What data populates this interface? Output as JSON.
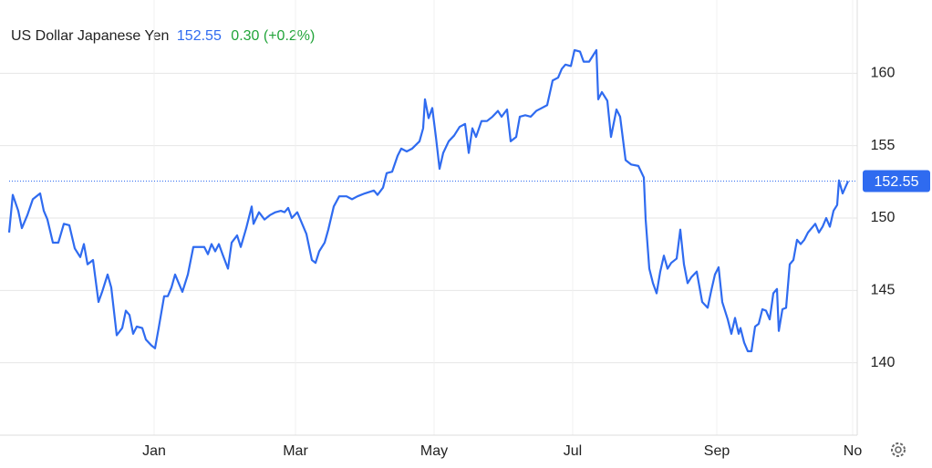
{
  "header": {
    "name": "US Dollar Japanese Yen",
    "price": "152.55",
    "change": "0.30 (+0.2%)"
  },
  "chart_data": {
    "type": "line",
    "x": [
      0,
      4,
      10,
      14,
      20,
      26,
      34,
      38,
      42,
      48,
      54,
      60,
      66,
      72,
      78,
      82,
      86,
      92,
      98,
      102,
      108,
      112,
      116,
      118,
      124,
      128,
      132,
      136,
      140,
      146,
      150,
      156,
      160,
      164,
      170,
      174,
      178,
      182,
      186,
      190,
      196,
      202,
      208,
      214,
      218,
      222,
      226,
      230,
      234,
      240,
      244,
      250,
      254,
      260,
      266,
      268,
      274,
      280,
      286,
      292,
      298,
      302,
      306,
      310,
      316,
      320,
      326,
      332,
      336,
      340,
      346,
      350,
      356,
      362,
      370,
      376,
      382,
      390,
      400,
      404,
      410,
      414,
      420,
      426,
      430,
      436,
      442,
      450,
      454,
      456,
      460,
      464,
      468,
      472,
      476,
      482,
      488,
      494,
      500,
      504,
      508,
      512,
      518,
      524,
      530,
      536,
      540,
      546,
      550,
      556,
      560,
      566,
      572,
      578,
      584,
      590,
      596,
      602,
      606,
      610,
      616,
      620,
      626,
      630,
      636,
      642,
      644,
      646,
      650,
      656,
      660,
      666,
      670,
      676,
      682,
      690,
      696,
      698,
      702,
      706,
      710,
      714,
      718,
      722,
      726,
      732,
      736,
      740,
      744,
      748,
      754,
      760,
      766,
      770,
      774,
      778,
      782,
      788,
      792,
      796,
      800,
      802,
      806,
      810,
      814,
      818,
      822,
      826,
      830,
      834,
      838,
      842,
      844,
      848,
      852,
      856,
      860,
      864,
      868,
      872,
      876,
      880,
      884,
      888,
      892,
      896,
      900,
      904,
      908,
      910,
      914,
      920
    ],
    "series": [
      {
        "name": "US Dollar Japanese Yen",
        "color": "#2f6bf0",
        "values": [
          149.0,
          151.6,
          150.5,
          149.3,
          150.2,
          151.3,
          151.7,
          150.5,
          149.9,
          148.3,
          148.3,
          149.6,
          149.5,
          147.9,
          147.3,
          148.2,
          146.8,
          147.1,
          144.2,
          144.9,
          146.1,
          145.2,
          143.0,
          141.9,
          142.4,
          143.6,
          143.3,
          142.0,
          142.5,
          142.4,
          141.6,
          141.2,
          141.0,
          142.4,
          144.6,
          144.6,
          145.2,
          146.1,
          145.5,
          144.9,
          146.1,
          148.0,
          148.0,
          148.0,
          147.5,
          148.2,
          147.7,
          148.2,
          147.5,
          146.5,
          148.3,
          148.8,
          148.0,
          149.3,
          150.8,
          149.6,
          150.4,
          149.9,
          150.2,
          150.4,
          150.5,
          150.4,
          150.7,
          150.0,
          150.4,
          149.8,
          148.9,
          147.1,
          146.9,
          147.7,
          148.3,
          149.2,
          150.8,
          151.5,
          151.5,
          151.3,
          151.5,
          151.7,
          151.9,
          151.6,
          152.1,
          153.1,
          153.2,
          154.3,
          154.8,
          154.6,
          154.8,
          155.3,
          156.2,
          158.2,
          156.9,
          157.6,
          155.6,
          153.4,
          154.5,
          155.3,
          155.7,
          156.3,
          156.5,
          154.5,
          156.2,
          155.6,
          156.7,
          156.7,
          157.0,
          157.4,
          157.0,
          157.5,
          155.3,
          155.6,
          157.0,
          157.1,
          157.0,
          157.4,
          157.6,
          157.8,
          159.5,
          159.7,
          160.3,
          160.6,
          160.5,
          161.6,
          161.5,
          160.8,
          160.8,
          161.4,
          161.6,
          158.2,
          158.7,
          158.1,
          155.6,
          157.5,
          157.0,
          154.0,
          153.7,
          153.6,
          152.8,
          149.9,
          146.5,
          145.5,
          144.8,
          146.3,
          147.4,
          146.5,
          146.9,
          147.2,
          149.2,
          146.8,
          145.5,
          145.9,
          146.3,
          144.2,
          143.8,
          145.0,
          146.1,
          146.6,
          144.2,
          143.0,
          142.0,
          143.1,
          142.0,
          142.4,
          141.4,
          140.8,
          140.8,
          142.5,
          142.7,
          143.7,
          143.6,
          143.0,
          144.8,
          145.1,
          142.2,
          143.7,
          143.8,
          146.8,
          147.1,
          148.5,
          148.2,
          148.5,
          149.0,
          149.3,
          149.6,
          149.0,
          149.4,
          150.0,
          149.4,
          150.5,
          150.9,
          152.6,
          151.7,
          152.55
        ]
      }
    ],
    "xlim": [
      0,
      930
    ],
    "xticks": [
      {
        "value": 159,
        "label": "Jan"
      },
      {
        "value": 314,
        "label": "Mar"
      },
      {
        "value": 466,
        "label": "May"
      },
      {
        "value": 618,
        "label": "Jul"
      },
      {
        "value": 776,
        "label": "Sep"
      },
      {
        "value": 925,
        "label": "No"
      }
    ],
    "ylim": [
      135,
      165
    ],
    "yticks": [
      140,
      145,
      150,
      155,
      160
    ],
    "grid": true
  }
}
